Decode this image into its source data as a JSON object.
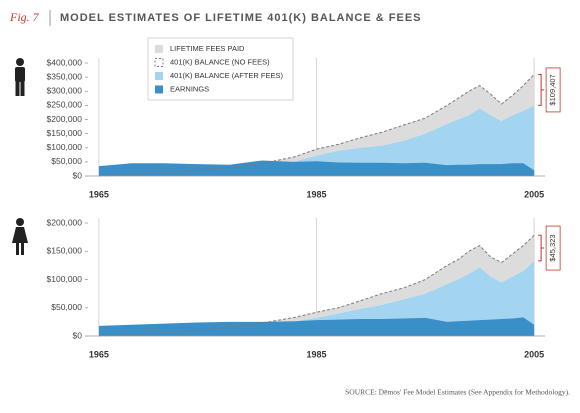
{
  "header": {
    "fig": "Fig. 7",
    "title": "MODEL ESTIMATES OF LIFETIME 401(K) BALANCE & FEES"
  },
  "source": "SOURCE: Dēmos' Fee Model Estimates (See Appendix for Methodology).",
  "chart_data": [
    {
      "type": "area",
      "annotation": "$109,407",
      "x": [
        1965,
        1968,
        1971,
        1974,
        1977,
        1980,
        1983,
        1985,
        1987,
        1989,
        1991,
        1993,
        1995,
        1997,
        1998,
        1999,
        2000,
        2001,
        2002,
        2003,
        2004,
        2005
      ],
      "xlim": [
        1964,
        2006
      ],
      "xticks": [
        1965,
        1985,
        2005
      ],
      "ylim": [
        0,
        400000
      ],
      "yticks": [
        {
          "value": 0,
          "label": "$0"
        },
        {
          "value": 50000,
          "label": "$50,000"
        },
        {
          "value": 100000,
          "label": "$100,000"
        },
        {
          "value": 150000,
          "label": "$150,000"
        },
        {
          "value": 200000,
          "label": "$200,000"
        },
        {
          "value": 250000,
          "label": "$250,000"
        },
        {
          "value": 300000,
          "label": "$300,000"
        },
        {
          "value": 350000,
          "label": "$350,000"
        },
        {
          "value": 400000,
          "label": "$400,000"
        }
      ],
      "series": [
        {
          "name": "LIFETIME FEES PAID",
          "color": "#dcdcdc",
          "values": [
            0,
            500,
            1500,
            3000,
            5000,
            9000,
            16000,
            23000,
            22000,
            35000,
            47000,
            55000,
            55000,
            65000,
            75000,
            85000,
            80000,
            75000,
            60000,
            70000,
            90000,
            109407
          ]
        },
        {
          "name": "401(K) BALANCE (NO FEES)",
          "color": "#7a7a7a",
          "values": [
            0,
            5500,
            12500,
            21000,
            31000,
            44000,
            68000,
            95000,
            112000,
            135000,
            155000,
            180000,
            205000,
            250000,
            275000,
            300000,
            320000,
            290000,
            255000,
            285000,
            320000,
            359407
          ]
        },
        {
          "name": "401(K) BALANCE (AFTER FEES)",
          "color": "#a3d5f1",
          "values": [
            0,
            5000,
            11000,
            18000,
            26000,
            35000,
            52000,
            72000,
            90000,
            100000,
            108000,
            125000,
            150000,
            185000,
            200000,
            215000,
            240000,
            215000,
            195000,
            215000,
            230000,
            250000
          ]
        },
        {
          "name": "EARNINGS",
          "color": "#3a8fc9",
          "values": [
            35000,
            45000,
            45000,
            42000,
            40000,
            55000,
            50000,
            52000,
            48000,
            47000,
            47000,
            45000,
            47000,
            38000,
            40000,
            40000,
            42000,
            42000,
            42000,
            45000,
            45000,
            20000
          ]
        }
      ]
    },
    {
      "type": "area",
      "annotation": "$45,323",
      "x": [
        1965,
        1968,
        1971,
        1974,
        1977,
        1980,
        1983,
        1985,
        1987,
        1989,
        1991,
        1993,
        1995,
        1997,
        1998,
        1999,
        2000,
        2001,
        2002,
        2003,
        2004,
        2005
      ],
      "xlim": [
        1964,
        2006
      ],
      "xticks": [
        1965,
        1985,
        2005
      ],
      "ylim": [
        0,
        200000
      ],
      "yticks": [
        {
          "value": 0,
          "label": "$0"
        },
        {
          "value": 50000,
          "label": "$50,000"
        },
        {
          "value": 100000,
          "label": "$100,000"
        },
        {
          "value": 150000,
          "label": "$150,000"
        },
        {
          "value": 200000,
          "label": "$200,000"
        }
      ],
      "series": [
        {
          "color": "#dcdcdc",
          "values": [
            0,
            200,
            700,
            1500,
            2500,
            4000,
            7000,
            10000,
            10000,
            14000,
            20000,
            20000,
            25000,
            33000,
            35000,
            40000,
            38000,
            35000,
            35000,
            40000,
            45000,
            45323
          ]
        },
        {
          "color": "#7a7a7a",
          "values": [
            0,
            2200,
            5700,
            10500,
            16500,
            23000,
            33000,
            42000,
            50000,
            62000,
            75000,
            85000,
            100000,
            125000,
            135000,
            150000,
            160000,
            140000,
            130000,
            145000,
            160000,
            178323
          ]
        },
        {
          "color": "#a3d5f1",
          "values": [
            0,
            2000,
            5000,
            9000,
            14000,
            19000,
            26000,
            32000,
            40000,
            48000,
            55000,
            65000,
            75000,
            92000,
            100000,
            110000,
            122000,
            105000,
            95000,
            105000,
            115000,
            133000
          ]
        },
        {
          "color": "#3a8fc9",
          "values": [
            18000,
            20000,
            22000,
            24000,
            25000,
            25000,
            26000,
            28000,
            29000,
            30000,
            30000,
            31000,
            32000,
            25000,
            26000,
            27000,
            28000,
            29000,
            30000,
            31000,
            33000,
            20000
          ]
        }
      ]
    }
  ]
}
